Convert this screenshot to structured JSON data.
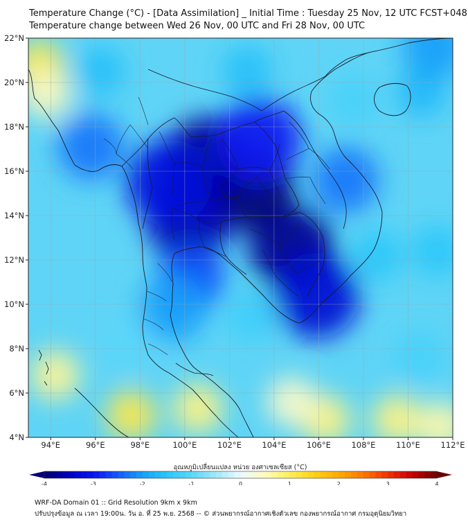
{
  "header": {
    "title": "Temperature Change (°C) - [Data Assimilation] _ Initial Time : Tuesday 25 Nov, 12 UTC FCST+048",
    "subtitle": "Temperature change between Wed 26 Nov, 00 UTC and Fri 28 Nov, 00 UTC"
  },
  "map": {
    "lat_range": [
      4,
      22
    ],
    "lon_range": [
      93,
      112
    ],
    "lat_ticks": [
      {
        "value": 4,
        "label": "4°N"
      },
      {
        "value": 6,
        "label": "6°N"
      },
      {
        "value": 8,
        "label": "8°N"
      },
      {
        "value": 10,
        "label": "10°N"
      },
      {
        "value": 12,
        "label": "12°N"
      },
      {
        "value": 14,
        "label": "14°N"
      },
      {
        "value": 16,
        "label": "16°N"
      },
      {
        "value": 18,
        "label": "18°N"
      },
      {
        "value": 20,
        "label": "20°N"
      },
      {
        "value": 22,
        "label": "22°N"
      }
    ],
    "lon_ticks": [
      {
        "value": 94,
        "label": "94°E"
      },
      {
        "value": 96,
        "label": "96°E"
      },
      {
        "value": 98,
        "label": "98°E"
      },
      {
        "value": 100,
        "label": "100°E"
      },
      {
        "value": 102,
        "label": "102°E"
      },
      {
        "value": 104,
        "label": "104°E"
      },
      {
        "value": 106,
        "label": "106°E"
      },
      {
        "value": 108,
        "label": "108°E"
      },
      {
        "value": 110,
        "label": "110°E"
      },
      {
        "value": 112,
        "label": "112°E"
      }
    ],
    "regions": [
      {
        "lon": 103,
        "lat": 15.2,
        "value": -4.0
      },
      {
        "lon": 101,
        "lat": 16.5,
        "value": -3.8
      },
      {
        "lon": 104.8,
        "lat": 12.5,
        "value": -3.8
      },
      {
        "lon": 105.9,
        "lat": 10.4,
        "value": -3.3
      },
      {
        "lon": 100.2,
        "lat": 13.8,
        "value": -3.6
      },
      {
        "lon": 99.3,
        "lat": 15.5,
        "value": -3.2
      },
      {
        "lon": 103.3,
        "lat": 17.4,
        "value": -3.0
      },
      {
        "lon": 100.3,
        "lat": 11.2,
        "value": -2.6
      },
      {
        "lon": 99.5,
        "lat": 9.8,
        "value": -2.0
      },
      {
        "lon": 95.8,
        "lat": 17.1,
        "value": -2.3
      },
      {
        "lon": 107.2,
        "lat": 15.6,
        "value": -2.3
      },
      {
        "lon": 110.6,
        "lat": 19.6,
        "value": -1.7
      },
      {
        "lon": 111.2,
        "lat": 21.7,
        "value": -2.0
      },
      {
        "lon": 96.2,
        "lat": 20.5,
        "value": -1.6
      },
      {
        "lon": 108.6,
        "lat": 12.2,
        "value": -1.5
      },
      {
        "lon": 111.3,
        "lat": 12.4,
        "value": -1.5
      },
      {
        "lon": 103,
        "lat": 9.5,
        "value": -1.3
      },
      {
        "lon": 102.8,
        "lat": 20.5,
        "value": -1.6
      },
      {
        "lon": 107.6,
        "lat": 19.2,
        "value": -1.2
      },
      {
        "lon": 97.5,
        "lat": 8.2,
        "value": -1.0
      },
      {
        "lon": 110.5,
        "lat": 7.7,
        "value": -1.2
      },
      {
        "lon": 93.5,
        "lat": 20.8,
        "value": 1.1
      },
      {
        "lon": 93.8,
        "lat": 19.5,
        "value": 0.5
      },
      {
        "lon": 94.2,
        "lat": 6.8,
        "value": 0.7
      },
      {
        "lon": 97.6,
        "lat": 5.0,
        "value": 1.1
      },
      {
        "lon": 100.6,
        "lat": 5.3,
        "value": 0.8
      },
      {
        "lon": 106.3,
        "lat": 4.8,
        "value": 0.8
      },
      {
        "lon": 104.8,
        "lat": 5.6,
        "value": 0.4
      },
      {
        "lon": 109.5,
        "lat": 4.8,
        "value": 0.8
      },
      {
        "lon": 111.5,
        "lat": 4.5,
        "value": 0.6
      }
    ]
  },
  "colorbar": {
    "label": "อุณหภูมิเปลี่ยนแปลง หน่วย องศาเซลเซียส (°C)",
    "min": -4,
    "max": 4,
    "ticks": [
      {
        "value": -4,
        "label": "-4"
      },
      {
        "value": -3,
        "label": "-3"
      },
      {
        "value": -2,
        "label": "-2"
      },
      {
        "value": -1,
        "label": "-1"
      },
      {
        "value": 0,
        "label": "0"
      },
      {
        "value": 1,
        "label": "1"
      },
      {
        "value": 2,
        "label": "2"
      },
      {
        "value": 3,
        "label": "3"
      },
      {
        "value": 4,
        "label": "4"
      }
    ]
  },
  "footer": {
    "line1": "WRF-DA Domain 01 :: Grid Resolution 9km x 9km",
    "line2": "ปรับปรุงข้อมูล ณ เวลา 19:00น. วัน อ. ที่ 25 พ.ย. 2568 -- © ส่วนพยากรณ์อากาศเชิงตัวเลข กองพยากรณ์อากาศ กรมอุตุนิยมวิทยา"
  },
  "colors": {
    "ocean_background": "#5fd4f6",
    "land_outline": "#1a1a2a",
    "grid": "#9aa6b2",
    "coldest": "#00007a",
    "neutral": "#e8f9ff",
    "warmest": "#6a0000"
  }
}
